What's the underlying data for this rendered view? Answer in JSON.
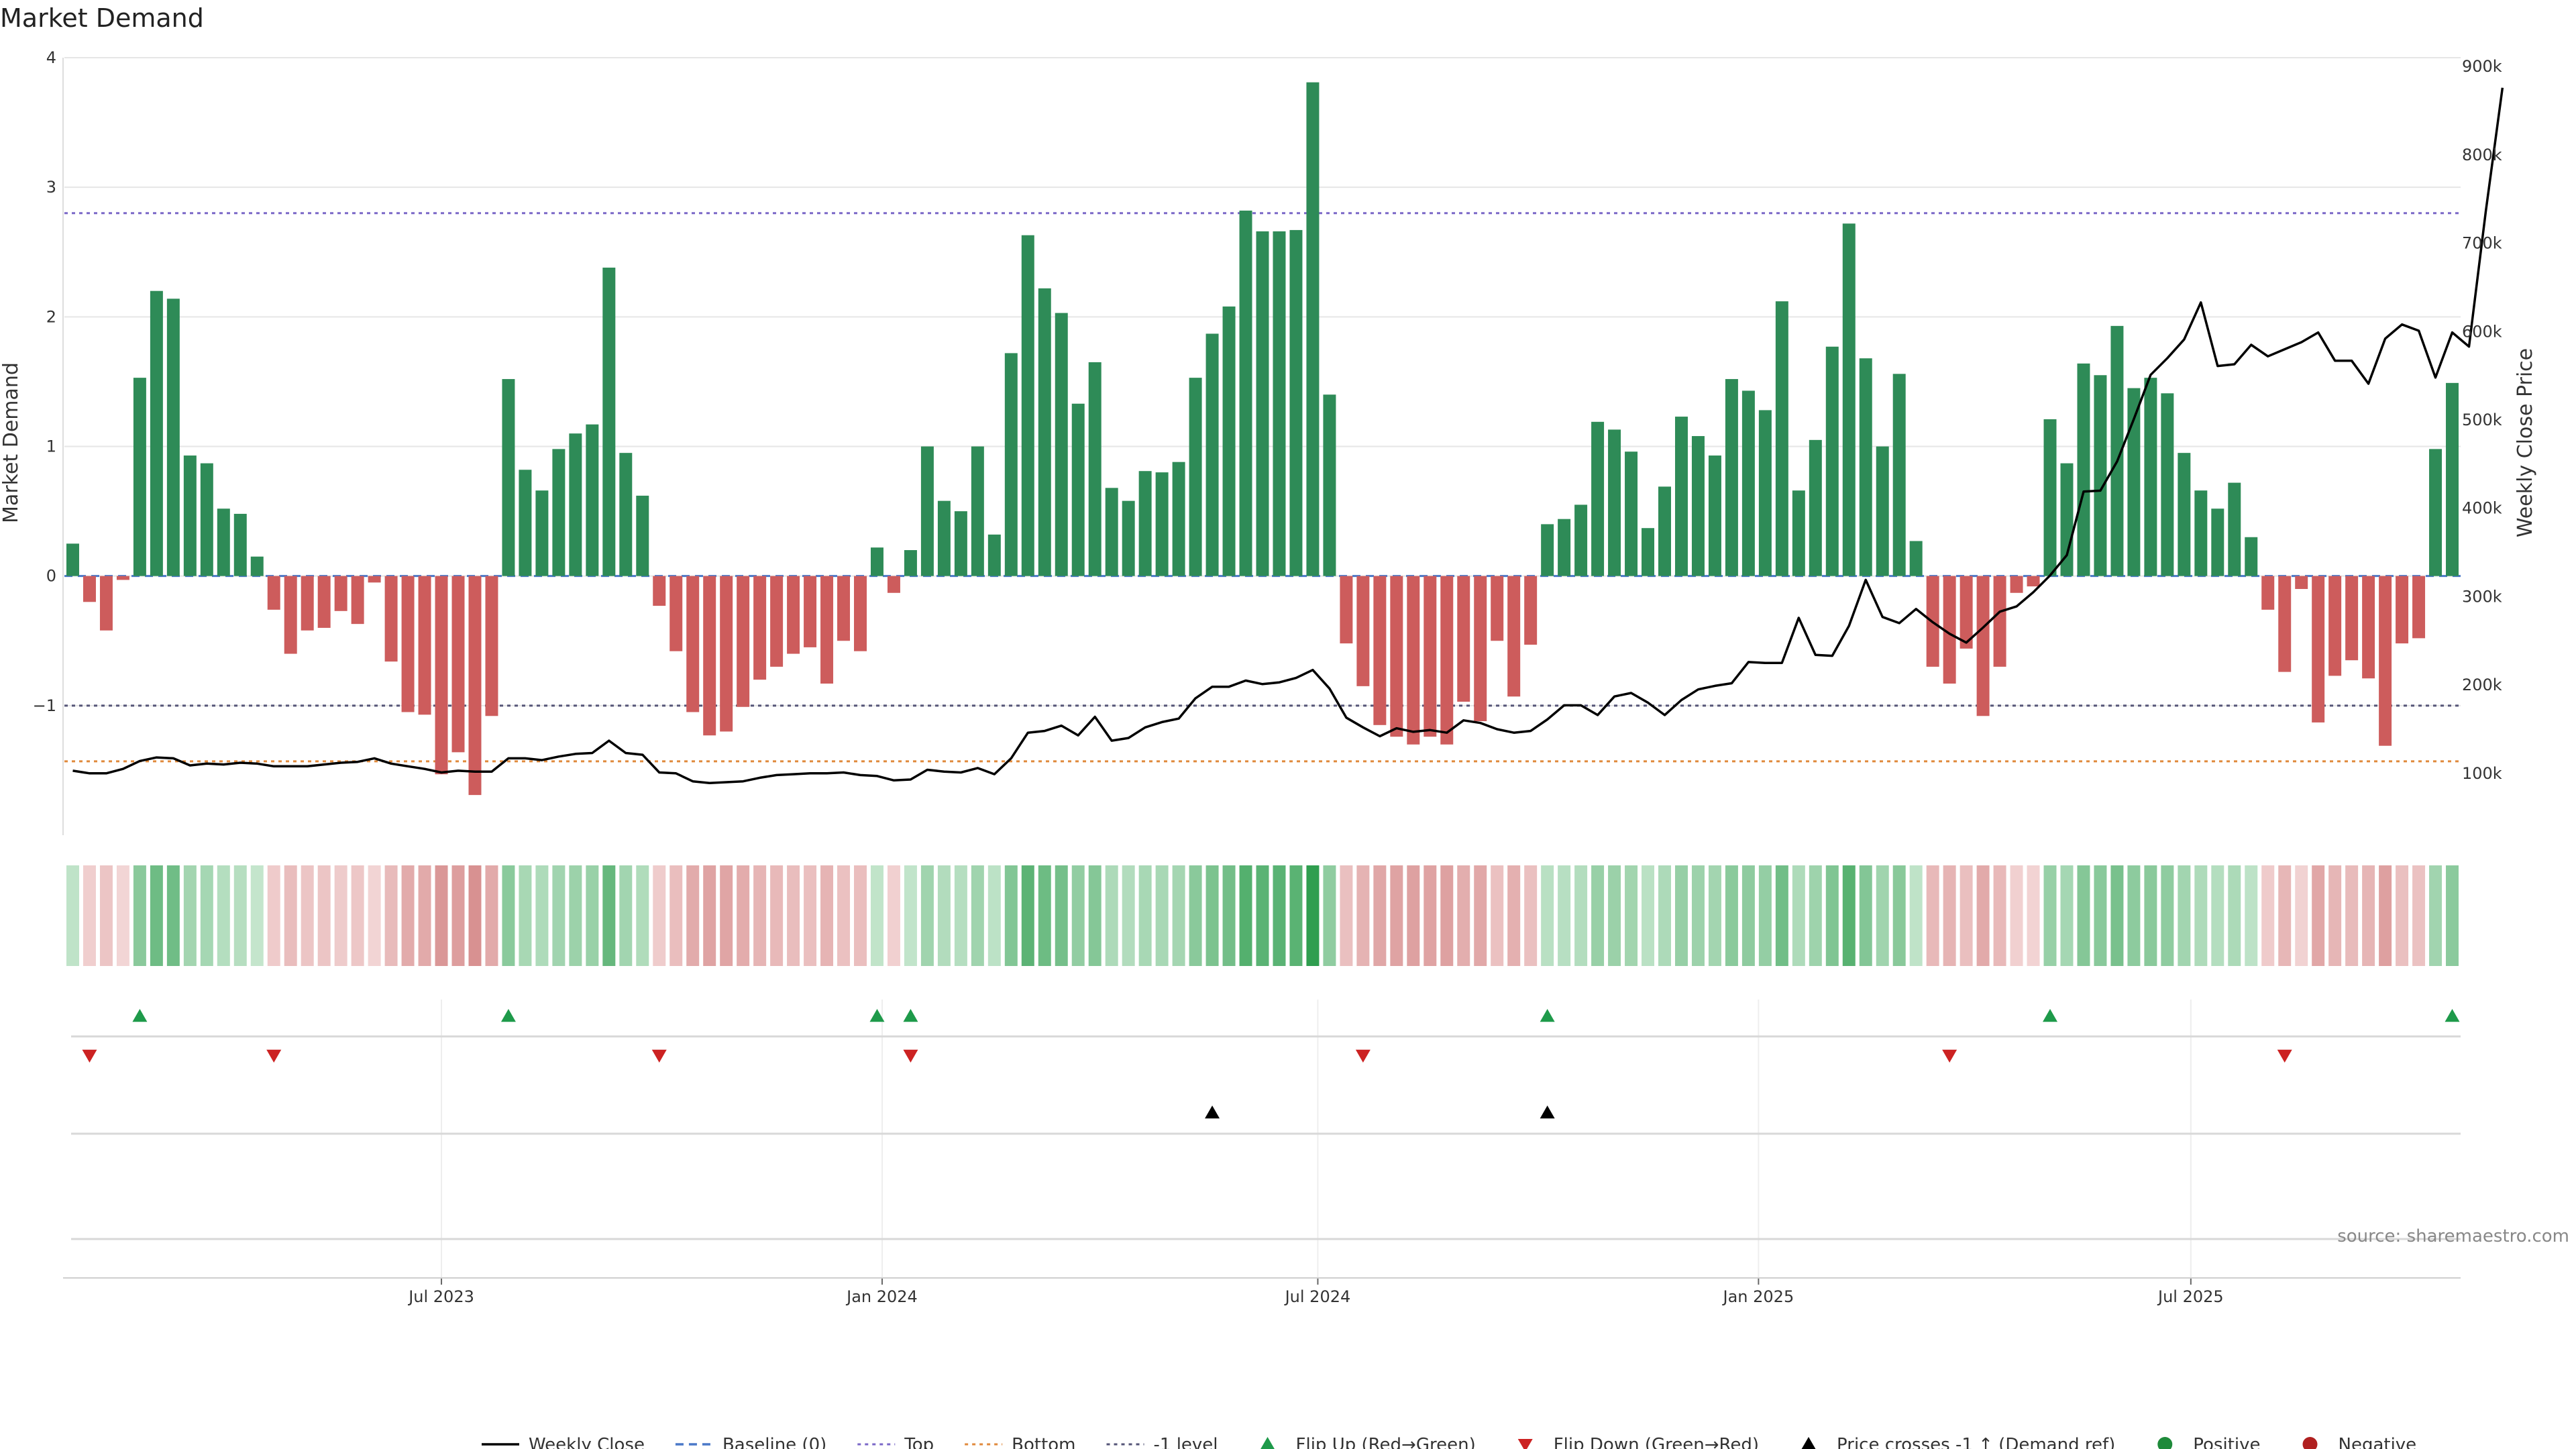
{
  "chart_data": {
    "type": "bar",
    "title": "Market Demand",
    "ylabel": "Market Demand",
    "y2label": "Weekly Close Price",
    "ylim": [
      -2.0,
      4.0
    ],
    "yticks": [
      -1,
      0,
      1,
      2,
      3,
      4
    ],
    "ytick_labels": [
      "−1",
      "0",
      "1",
      "2",
      "3",
      "4"
    ],
    "y2lim": [
      30000,
      910000
    ],
    "y2ticks": [
      100000,
      200000,
      300000,
      400000,
      500000,
      600000,
      700000,
      800000,
      900000
    ],
    "y2tick_labels": [
      "100k",
      "200k",
      "300k",
      "400k",
      "500k",
      "600k",
      "700k",
      "800k",
      "900k"
    ],
    "x_tick_labels": [
      {
        "week": 22,
        "label": "Jul 2023"
      },
      {
        "week": 48.3,
        "label": "Jan 2024"
      },
      {
        "week": 74.3,
        "label": "Jul 2024"
      },
      {
        "week": 100.6,
        "label": "Jan 2025"
      },
      {
        "week": 126.4,
        "label": "Jul 2025"
      }
    ],
    "reference_lines": {
      "top": 2.8,
      "minus_one": -1.0,
      "bottom": -1.43,
      "baseline": 0
    },
    "series": [
      {
        "name": "Market Demand",
        "values": [
          0.25,
          -0.2,
          -0.42,
          -0.03,
          1.53,
          2.2,
          2.14,
          0.93,
          0.87,
          0.52,
          0.48,
          0.15,
          -0.26,
          -0.6,
          -0.42,
          -0.4,
          -0.27,
          -0.37,
          -0.05,
          -0.66,
          -1.05,
          -1.07,
          -1.53,
          -1.36,
          -1.69,
          -1.08,
          1.52,
          0.82,
          0.66,
          0.98,
          1.1,
          1.17,
          2.38,
          0.95,
          0.62,
          -0.23,
          -0.58,
          -1.05,
          -1.23,
          -1.2,
          -1.01,
          -0.8,
          -0.7,
          -0.6,
          -0.55,
          -0.83,
          -0.5,
          -0.58,
          0.22,
          -0.13,
          0.2,
          1.0,
          0.58,
          0.5,
          1.0,
          0.32,
          1.72,
          2.63,
          2.22,
          2.03,
          1.33,
          1.65,
          0.68,
          0.58,
          0.81,
          0.8,
          0.88,
          1.53,
          1.87,
          2.08,
          2.82,
          2.66,
          2.66,
          2.67,
          3.81,
          1.4,
          -0.52,
          -0.85,
          -1.15,
          -1.24,
          -1.3,
          -1.24,
          -1.3,
          -0.97,
          -1.12,
          -0.5,
          -0.93,
          -0.53,
          0.4,
          0.44,
          0.55,
          1.19,
          1.13,
          0.96,
          0.37,
          0.69,
          1.23,
          1.08,
          0.93,
          1.52,
          1.43,
          1.28,
          2.12,
          0.66,
          1.05,
          1.77,
          2.72,
          1.68,
          1.0,
          1.56,
          0.27,
          -0.7,
          -0.83,
          -0.56,
          -1.08,
          -0.7,
          -0.13,
          -0.08,
          1.21,
          0.87,
          1.64,
          1.55,
          1.93,
          1.45,
          1.53,
          1.41,
          0.95,
          0.66,
          0.52,
          0.72,
          0.3,
          -0.26,
          -0.74,
          -0.1,
          -1.13,
          -0.77,
          -0.65,
          -0.79,
          -1.31,
          -0.52,
          -0.48,
          0.98,
          1.49
        ]
      },
      {
        "name": "Weekly Close",
        "values": [
          103,
          100,
          100,
          105,
          114,
          118,
          117,
          109,
          111,
          110,
          112,
          111,
          108,
          108,
          108,
          110,
          112,
          113,
          117,
          111,
          108,
          105,
          101,
          103,
          102,
          102,
          117,
          117,
          115,
          119,
          122,
          123,
          137,
          123,
          121,
          101,
          100,
          91,
          89,
          90,
          91,
          95,
          98,
          99,
          100,
          100,
          101,
          98,
          97,
          92,
          93,
          104,
          102,
          101,
          106,
          99,
          117,
          146,
          148,
          154,
          143,
          164,
          137,
          140,
          152,
          158,
          162,
          185,
          198,
          198,
          205,
          201,
          203,
          208,
          217,
          196,
          163,
          152,
          142,
          151,
          147,
          149,
          146,
          160,
          157,
          150,
          146,
          148,
          161,
          177,
          177,
          166,
          187,
          191,
          180,
          166,
          183,
          195,
          199,
          202,
          226,
          225,
          225,
          276,
          234,
          233,
          267,
          319,
          277,
          270,
          286,
          271,
          258,
          248,
          265,
          283,
          289,
          305,
          324,
          347,
          419,
          420,
          453,
          501,
          551,
          570,
          591,
          633,
          561,
          563,
          585,
          572,
          580,
          588,
          599,
          567,
          567,
          541,
          592,
          608,
          601,
          548,
          599,
          583,
          736,
          876
        ]
      }
    ],
    "heat_strip": "color strip per week mirroring demand sign and magnitude",
    "flip_up_weeks": [
      4,
      26,
      48,
      50,
      88,
      118,
      142
    ],
    "flip_down_weeks": [
      1,
      12,
      35,
      50,
      77,
      112,
      132
    ],
    "price_cross_weeks": [
      68,
      88
    ],
    "source": "source: sharemaestro.com",
    "legend": [
      "Weekly Close",
      "Baseline (0)",
      "Top",
      "Bottom",
      "-1 level",
      "Flip Up (Red→Green)",
      "Flip Down (Green→Red)",
      "Price crosses -1 ↑ (Demand ref)",
      "Positive",
      "Negative"
    ],
    "colors": {
      "positive": "#2e8b57",
      "negative": "#cd5c5c",
      "line": "#000000",
      "baseline": "#4a78c8",
      "top": "#7b68c8",
      "bottom": "#e08a3c",
      "minus_one": "#555577",
      "flip_up": "#1e9a4a",
      "flip_down": "#cc2222",
      "cross": "#000000",
      "pos_dot": "#1e8a3a",
      "neg_dot": "#b02020",
      "grid": "#e6e6e6"
    }
  }
}
